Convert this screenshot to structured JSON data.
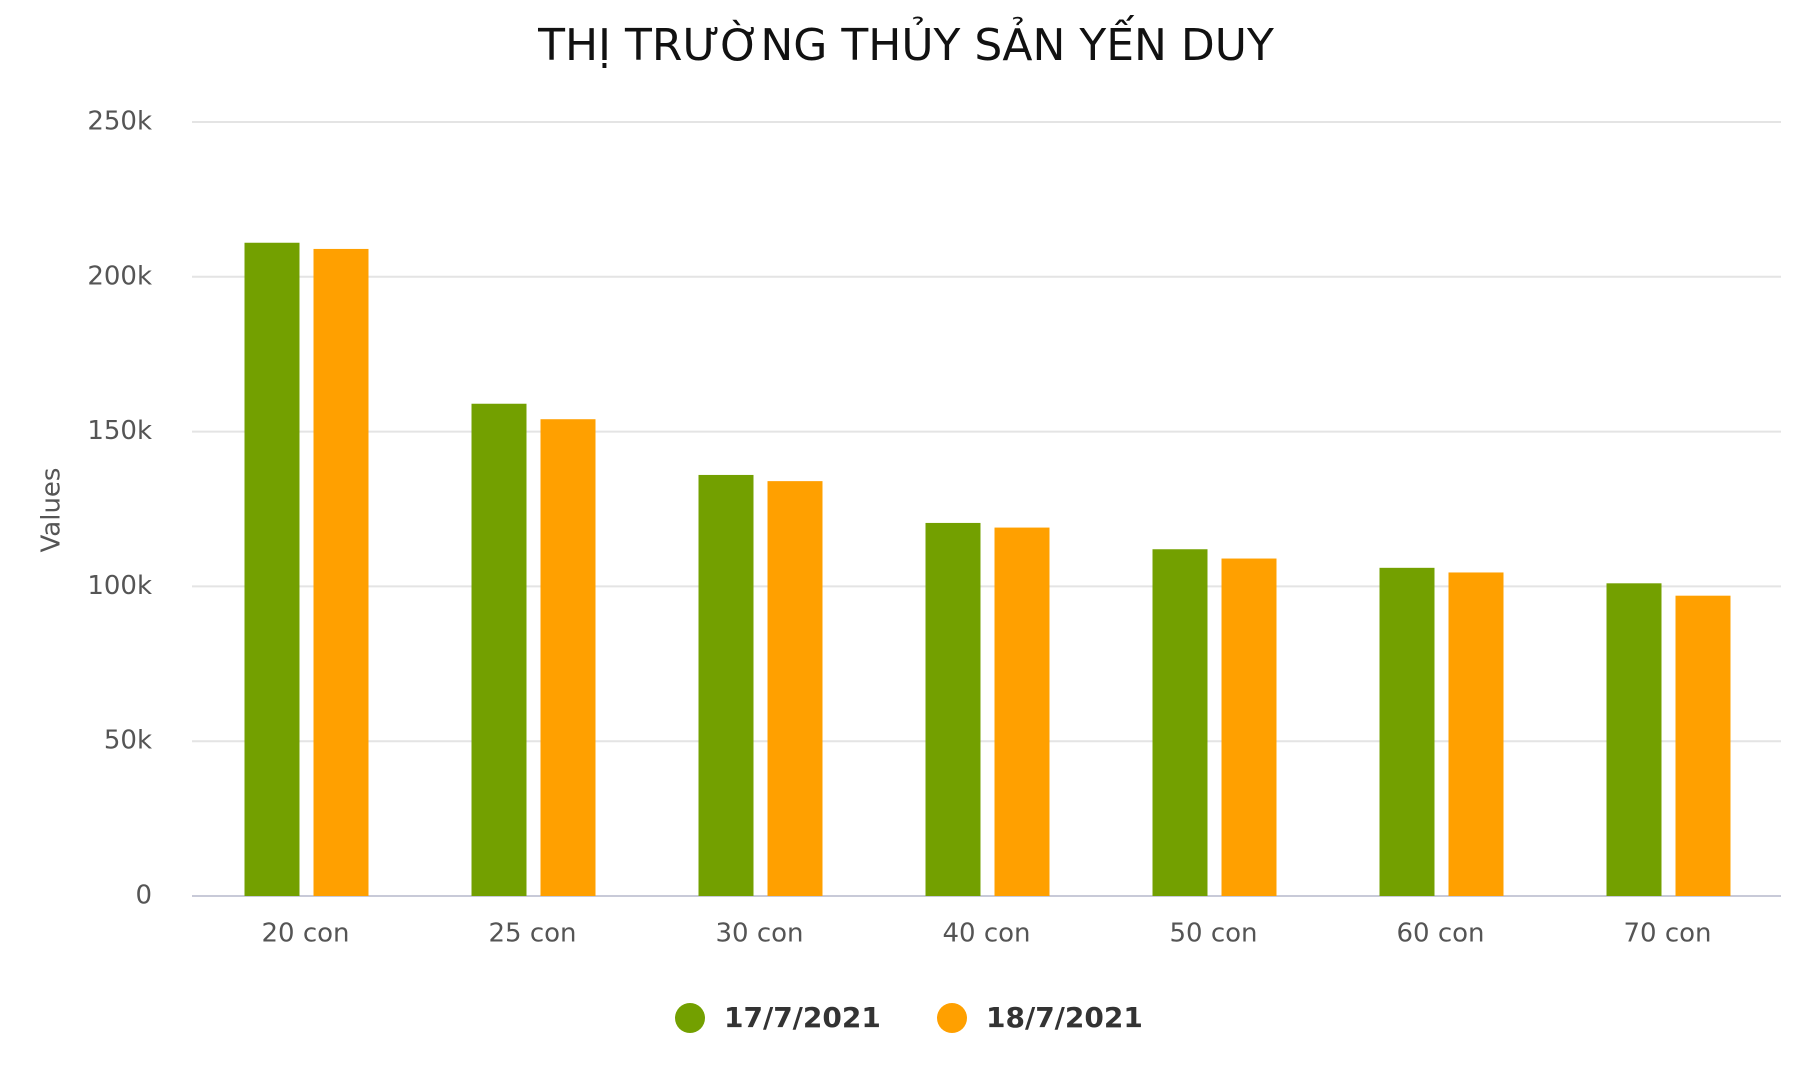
{
  "chart_data": {
    "type": "bar",
    "title": "THỊ TRƯỜNG THỦY SẢN YẾN DUY",
    "y_label": "Values",
    "categories": [
      "20 con",
      "25 con",
      "30 con",
      "40 con",
      "50 con",
      "60 con",
      "70 con"
    ],
    "series": [
      {
        "name": "17/7/2021",
        "color": "#73a000",
        "values": [
          211000,
          159000,
          136000,
          120500,
          112000,
          106000,
          101000
        ]
      },
      {
        "name": "18/7/2021",
        "color": "#ffa000",
        "values": [
          209000,
          154000,
          134000,
          119000,
          109000,
          104500,
          97000
        ]
      }
    ],
    "ylim": [
      0,
      250000
    ],
    "yticks": [
      0,
      {
        "value": 50000,
        "label": "50k"
      },
      {
        "value": 100000,
        "label": "100k"
      },
      {
        "value": 150000,
        "label": "150k"
      },
      {
        "value": 200000,
        "label": "200k"
      },
      {
        "value": 250000,
        "label": "250k"
      }
    ],
    "grid": true,
    "legend": "bottom"
  }
}
